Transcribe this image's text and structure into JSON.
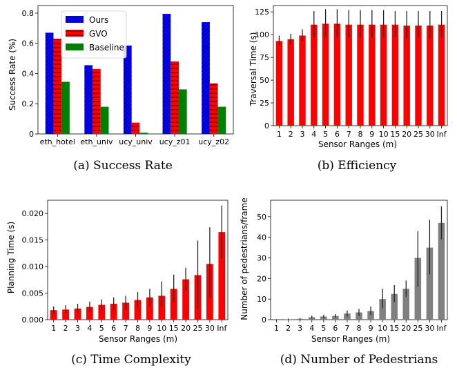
{
  "chart_data": [
    {
      "id": "a",
      "type": "bar",
      "caption": "(a) Success Rate",
      "categories": [
        "eth_hotel",
        "eth_univ",
        "ucy_univ",
        "ucy_z01",
        "ucy_z02"
      ],
      "series": [
        {
          "name": "Ours",
          "color": "#0000ff",
          "hatch": "diagonal",
          "values": [
            0.67,
            0.455,
            0.585,
            0.795,
            0.74
          ]
        },
        {
          "name": "GVO",
          "color": "#ff0000",
          "hatch": "horizontal",
          "values": [
            0.63,
            0.43,
            0.075,
            0.48,
            0.335
          ]
        },
        {
          "name": "Baseline",
          "color": "#008000",
          "hatch": "none",
          "values": [
            0.345,
            0.18,
            0.008,
            0.295,
            0.18
          ]
        }
      ],
      "ylabel": "Success Rate (%)",
      "xlabel": "",
      "ylim": [
        0,
        0.85
      ],
      "yticks": [
        0,
        0.2,
        0.4,
        0.6,
        0.8
      ],
      "ytick_labels": [
        "0",
        "0.2",
        "0.4",
        "0.6",
        "0.8"
      ],
      "legend": "top-left"
    },
    {
      "id": "b",
      "type": "bar",
      "caption": "(b) Efficiency",
      "categories": [
        "1",
        "2",
        "3",
        "4",
        "5",
        "6",
        "7",
        "8",
        "9",
        "10",
        "15",
        "20",
        "25",
        "30",
        "Inf"
      ],
      "values": [
        93,
        95,
        99,
        111,
        112,
        112,
        111,
        111,
        111,
        111,
        111,
        110,
        110,
        110,
        111
      ],
      "err_low": [
        88,
        89,
        93,
        97,
        98,
        97,
        97,
        97,
        97,
        97,
        97,
        96,
        97,
        96,
        97
      ],
      "err_high": [
        99,
        101,
        106,
        126,
        128,
        128,
        127,
        127,
        127,
        127,
        126,
        126,
        126,
        126,
        126
      ],
      "color": "#ff0000",
      "ylabel": "Traversal Time (s)",
      "xlabel": "Sensor Ranges (m)",
      "ylim": [
        0,
        132
      ],
      "yticks": [
        0,
        25,
        50,
        75,
        100,
        125
      ],
      "ytick_labels": [
        "0",
        "25",
        "50",
        "75",
        "100",
        "125"
      ]
    },
    {
      "id": "c",
      "type": "bar",
      "caption": "(c) Time Complexity",
      "categories": [
        "1",
        "2",
        "3",
        "4",
        "5",
        "6",
        "7",
        "8",
        "9",
        "10",
        "15",
        "20",
        "25",
        "30",
        "Inf"
      ],
      "values": [
        0.0018,
        0.0019,
        0.0021,
        0.0024,
        0.0028,
        0.003,
        0.0032,
        0.0037,
        0.0042,
        0.0045,
        0.0058,
        0.0076,
        0.0084,
        0.0105,
        0.0165
      ],
      "err_low": [
        0.0011,
        0.0012,
        0.0013,
        0.0015,
        0.0018,
        0.0018,
        0.0019,
        0.0023,
        0.0025,
        0.0026,
        0.0032,
        0.0055,
        0.002,
        0.004,
        0.0115
      ],
      "err_high": [
        0.0025,
        0.0027,
        0.003,
        0.0034,
        0.0038,
        0.0042,
        0.0045,
        0.0052,
        0.0058,
        0.0072,
        0.0085,
        0.0098,
        0.0149,
        0.0174,
        0.0215
      ],
      "color": "#ff0000",
      "ylabel": "Planning Time (s)",
      "xlabel": "Sensor Ranges (m)",
      "ylim": [
        0,
        0.0225
      ],
      "yticks": [
        0,
        0.005,
        0.01,
        0.015,
        0.02
      ],
      "ytick_labels": [
        "0.000",
        "0.005",
        "0.010",
        "0.015",
        "0.020"
      ]
    },
    {
      "id": "d",
      "type": "bar",
      "caption": "(d) Number of Pedestrians",
      "categories": [
        "1",
        "2",
        "3",
        "4",
        "5",
        "6",
        "7",
        "8",
        "9",
        "10",
        "15",
        "20",
        "25",
        "30",
        "Inf"
      ],
      "values": [
        0.05,
        0.2,
        0.4,
        1.2,
        1.5,
        1.8,
        3.0,
        3.5,
        4.2,
        10.0,
        12.5,
        15.0,
        30.0,
        35.0,
        47.0
      ],
      "err_low": [
        0,
        0,
        0.1,
        0.5,
        0.8,
        1.0,
        1.5,
        1.8,
        2.2,
        5.5,
        8.5,
        11.0,
        16.0,
        22.0,
        39.0
      ],
      "err_high": [
        0.2,
        0.5,
        0.8,
        2.0,
        2.3,
        2.7,
        4.5,
        5.2,
        6.4,
        15.0,
        16.8,
        19.0,
        43.0,
        48.5,
        55.0
      ],
      "color": "#808080",
      "ylabel": "Number of pedestrians/frame",
      "xlabel": "Sensor Ranges (m)",
      "ylim": [
        0,
        58
      ],
      "yticks": [
        0,
        10,
        20,
        30,
        40,
        50
      ],
      "ytick_labels": [
        "0",
        "10",
        "20",
        "30",
        "40",
        "50"
      ]
    }
  ]
}
